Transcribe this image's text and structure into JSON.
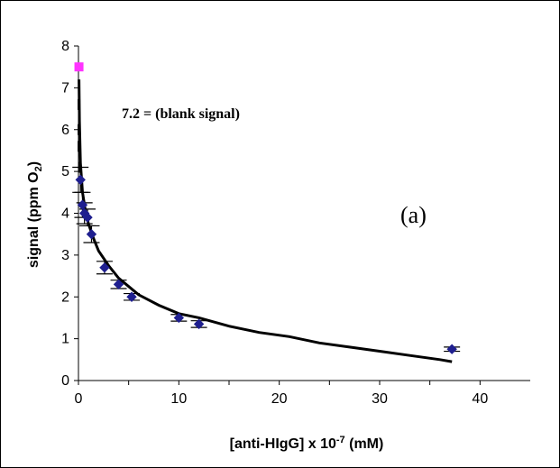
{
  "chart_data": {
    "type": "scatter",
    "xlabel": "[anti-HIgG] x 10",
    "xlabel_exponent": "-7",
    "xlabel_unit": " (mM)",
    "ylabel": "signal (ppm O",
    "ylabel_subscript": "2",
    "ylabel_close": ")",
    "xlim": [
      0,
      45
    ],
    "ylim": [
      0,
      8
    ],
    "xticks": [
      "0",
      "10",
      "20",
      "30",
      "40"
    ],
    "yticks": [
      "0",
      "1",
      "2",
      "3",
      "4",
      "5",
      "6",
      "7",
      "8"
    ],
    "grid": false,
    "annotation": "7.2 = (blank signal)",
    "panel_label": "(a)",
    "series": [
      {
        "marker": "diamond",
        "color": "#1f1f8f",
        "points": [
          {
            "x": 0.2,
            "y": 4.8,
            "err": 0.3
          },
          {
            "x": 0.4,
            "y": 4.2,
            "err": 0.3
          },
          {
            "x": 0.6,
            "y": 4.0,
            "err": 0.25
          },
          {
            "x": 0.9,
            "y": 3.9,
            "err": 0.2
          },
          {
            "x": 1.3,
            "y": 3.5,
            "err": 0.2
          },
          {
            "x": 2.6,
            "y": 2.7,
            "err": 0.15
          },
          {
            "x": 4.0,
            "y": 2.3,
            "err": 0.1
          },
          {
            "x": 5.3,
            "y": 2.0,
            "err": 0.08
          },
          {
            "x": 10.0,
            "y": 1.5,
            "err": 0.08
          },
          {
            "x": 12.0,
            "y": 1.35,
            "err": 0.08
          },
          {
            "x": 37.2,
            "y": 0.75,
            "err": 0.05
          }
        ]
      },
      {
        "marker": "square",
        "color": "#ff33ff",
        "points": [
          {
            "x": 0.05,
            "y": 7.5
          }
        ]
      }
    ],
    "fit_curve": {
      "color": "#000000",
      "points": [
        [
          0.05,
          7.2
        ],
        [
          0.1,
          6.2
        ],
        [
          0.2,
          5.2
        ],
        [
          0.4,
          4.5
        ],
        [
          0.7,
          4.05
        ],
        [
          1.0,
          3.75
        ],
        [
          1.5,
          3.4
        ],
        [
          2.0,
          3.1
        ],
        [
          3.0,
          2.75
        ],
        [
          4.0,
          2.45
        ],
        [
          5.0,
          2.25
        ],
        [
          6.0,
          2.05
        ],
        [
          8.0,
          1.8
        ],
        [
          10.0,
          1.6
        ],
        [
          12.0,
          1.5
        ],
        [
          15.0,
          1.3
        ],
        [
          18.0,
          1.15
        ],
        [
          21.0,
          1.05
        ],
        [
          24.0,
          0.9
        ],
        [
          27.0,
          0.8
        ],
        [
          30.0,
          0.7
        ],
        [
          33.0,
          0.6
        ],
        [
          36.0,
          0.5
        ],
        [
          37.2,
          0.45
        ]
      ]
    },
    "blank_bars": [
      {
        "x": 0.05,
        "y": 6.6
      },
      {
        "x": 0.05,
        "y": 6.0
      },
      {
        "x": 0.05,
        "y": 5.6
      },
      {
        "x": 0.1,
        "y": 5.1
      }
    ]
  }
}
